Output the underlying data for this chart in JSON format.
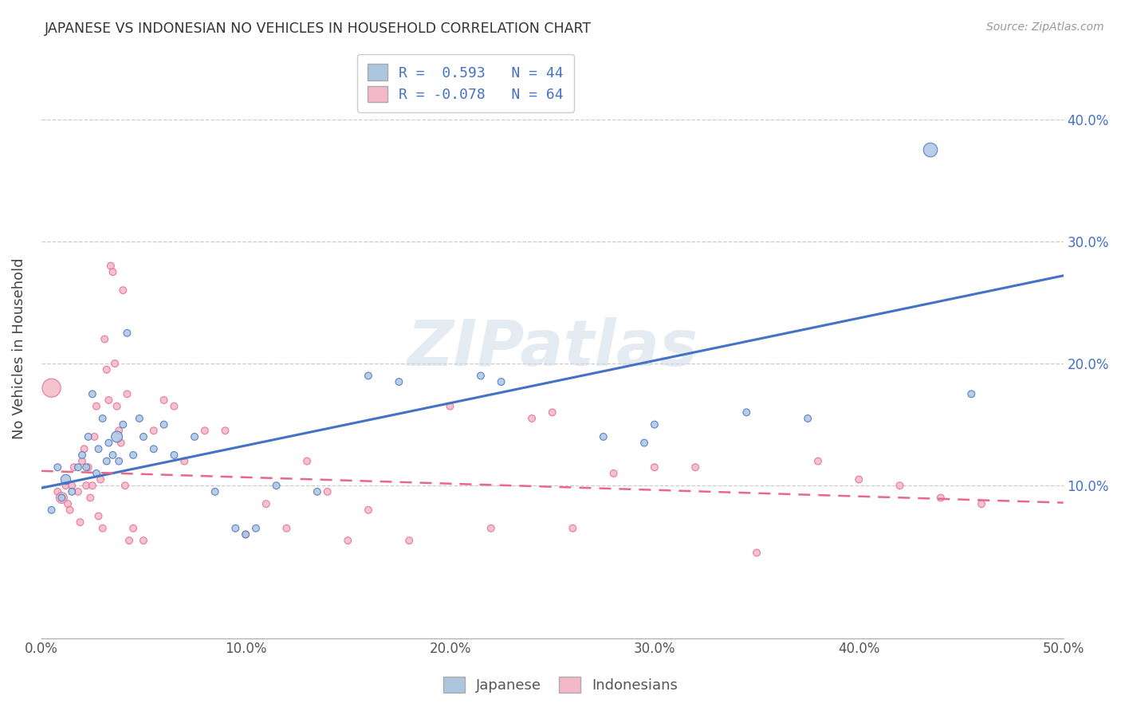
{
  "title": "JAPANESE VS INDONESIAN NO VEHICLES IN HOUSEHOLD CORRELATION CHART",
  "source": "Source: ZipAtlas.com",
  "ylabel": "No Vehicles in Household",
  "xlim": [
    0.0,
    0.5
  ],
  "ylim": [
    -0.025,
    0.45
  ],
  "xtick_labels": [
    "0.0%",
    "",
    "10.0%",
    "",
    "20.0%",
    "",
    "30.0%",
    "",
    "40.0%",
    "",
    "50.0%"
  ],
  "xtick_vals": [
    0.0,
    0.05,
    0.1,
    0.15,
    0.2,
    0.25,
    0.3,
    0.35,
    0.4,
    0.45,
    0.5
  ],
  "ytick_labels": [
    "10.0%",
    "20.0%",
    "30.0%",
    "40.0%"
  ],
  "ytick_vals": [
    0.1,
    0.2,
    0.3,
    0.4
  ],
  "japanese_color": "#adc6e0",
  "indonesian_color": "#f4b8c8",
  "japanese_line_color": "#4472c4",
  "indonesian_line_color": "#e8688a",
  "watermark_text": "ZIPatlas",
  "background_color": "#ffffff",
  "jp_R": 0.593,
  "jp_N": 44,
  "id_R": -0.078,
  "id_N": 64,
  "jp_line_x0": 0.0,
  "jp_line_y0": 0.098,
  "jp_line_x1": 0.5,
  "jp_line_y1": 0.272,
  "id_line_x0": 0.0,
  "id_line_y0": 0.112,
  "id_line_x1": 0.5,
  "id_line_y1": 0.086,
  "japanese_points": [
    [
      0.005,
      0.08
    ],
    [
      0.008,
      0.115
    ],
    [
      0.01,
      0.09
    ],
    [
      0.012,
      0.105
    ],
    [
      0.015,
      0.095
    ],
    [
      0.018,
      0.115
    ],
    [
      0.02,
      0.125
    ],
    [
      0.022,
      0.115
    ],
    [
      0.023,
      0.14
    ],
    [
      0.025,
      0.175
    ],
    [
      0.027,
      0.11
    ],
    [
      0.028,
      0.13
    ],
    [
      0.03,
      0.155
    ],
    [
      0.032,
      0.12
    ],
    [
      0.033,
      0.135
    ],
    [
      0.035,
      0.125
    ],
    [
      0.037,
      0.14
    ],
    [
      0.038,
      0.12
    ],
    [
      0.04,
      0.15
    ],
    [
      0.042,
      0.225
    ],
    [
      0.045,
      0.125
    ],
    [
      0.048,
      0.155
    ],
    [
      0.05,
      0.14
    ],
    [
      0.055,
      0.13
    ],
    [
      0.06,
      0.15
    ],
    [
      0.065,
      0.125
    ],
    [
      0.075,
      0.14
    ],
    [
      0.085,
      0.095
    ],
    [
      0.095,
      0.065
    ],
    [
      0.1,
      0.06
    ],
    [
      0.105,
      0.065
    ],
    [
      0.115,
      0.1
    ],
    [
      0.135,
      0.095
    ],
    [
      0.16,
      0.19
    ],
    [
      0.175,
      0.185
    ],
    [
      0.215,
      0.19
    ],
    [
      0.225,
      0.185
    ],
    [
      0.275,
      0.14
    ],
    [
      0.295,
      0.135
    ],
    [
      0.3,
      0.15
    ],
    [
      0.345,
      0.16
    ],
    [
      0.375,
      0.155
    ],
    [
      0.435,
      0.375
    ],
    [
      0.455,
      0.175
    ]
  ],
  "indonesian_points": [
    [
      0.005,
      0.18
    ],
    [
      0.008,
      0.095
    ],
    [
      0.01,
      0.09
    ],
    [
      0.012,
      0.1
    ],
    [
      0.013,
      0.085
    ],
    [
      0.014,
      0.08
    ],
    [
      0.015,
      0.1
    ],
    [
      0.016,
      0.115
    ],
    [
      0.018,
      0.095
    ],
    [
      0.019,
      0.07
    ],
    [
      0.02,
      0.12
    ],
    [
      0.021,
      0.13
    ],
    [
      0.022,
      0.1
    ],
    [
      0.023,
      0.115
    ],
    [
      0.024,
      0.09
    ],
    [
      0.025,
      0.1
    ],
    [
      0.026,
      0.14
    ],
    [
      0.027,
      0.165
    ],
    [
      0.028,
      0.075
    ],
    [
      0.029,
      0.105
    ],
    [
      0.03,
      0.065
    ],
    [
      0.031,
      0.22
    ],
    [
      0.032,
      0.195
    ],
    [
      0.033,
      0.17
    ],
    [
      0.034,
      0.28
    ],
    [
      0.035,
      0.275
    ],
    [
      0.036,
      0.2
    ],
    [
      0.037,
      0.165
    ],
    [
      0.038,
      0.145
    ],
    [
      0.039,
      0.135
    ],
    [
      0.04,
      0.26
    ],
    [
      0.041,
      0.1
    ],
    [
      0.042,
      0.175
    ],
    [
      0.043,
      0.055
    ],
    [
      0.045,
      0.065
    ],
    [
      0.05,
      0.055
    ],
    [
      0.055,
      0.145
    ],
    [
      0.06,
      0.17
    ],
    [
      0.065,
      0.165
    ],
    [
      0.07,
      0.12
    ],
    [
      0.08,
      0.145
    ],
    [
      0.09,
      0.145
    ],
    [
      0.1,
      0.06
    ],
    [
      0.11,
      0.085
    ],
    [
      0.12,
      0.065
    ],
    [
      0.13,
      0.12
    ],
    [
      0.14,
      0.095
    ],
    [
      0.15,
      0.055
    ],
    [
      0.16,
      0.08
    ],
    [
      0.18,
      0.055
    ],
    [
      0.2,
      0.165
    ],
    [
      0.22,
      0.065
    ],
    [
      0.24,
      0.155
    ],
    [
      0.25,
      0.16
    ],
    [
      0.26,
      0.065
    ],
    [
      0.28,
      0.11
    ],
    [
      0.3,
      0.115
    ],
    [
      0.32,
      0.115
    ],
    [
      0.35,
      0.045
    ],
    [
      0.38,
      0.12
    ],
    [
      0.4,
      0.105
    ],
    [
      0.42,
      0.1
    ],
    [
      0.44,
      0.09
    ],
    [
      0.46,
      0.085
    ]
  ],
  "japanese_sizes": [
    40,
    40,
    40,
    80,
    40,
    40,
    40,
    40,
    40,
    40,
    40,
    40,
    40,
    40,
    40,
    40,
    100,
    40,
    40,
    40,
    40,
    40,
    40,
    40,
    40,
    40,
    40,
    40,
    40,
    40,
    40,
    40,
    40,
    40,
    40,
    40,
    40,
    40,
    40,
    40,
    40,
    40,
    160,
    40
  ],
  "indonesian_sizes": [
    280,
    40,
    100,
    40,
    40,
    40,
    40,
    40,
    40,
    40,
    40,
    40,
    40,
    40,
    40,
    40,
    40,
    40,
    40,
    40,
    40,
    40,
    40,
    40,
    40,
    40,
    40,
    40,
    40,
    40,
    40,
    40,
    40,
    40,
    40,
    40,
    40,
    40,
    40,
    40,
    40,
    40,
    40,
    40,
    40,
    40,
    40,
    40,
    40,
    40,
    40,
    40,
    40,
    40,
    40,
    40,
    40,
    40,
    40,
    40,
    40,
    40,
    40,
    40
  ]
}
